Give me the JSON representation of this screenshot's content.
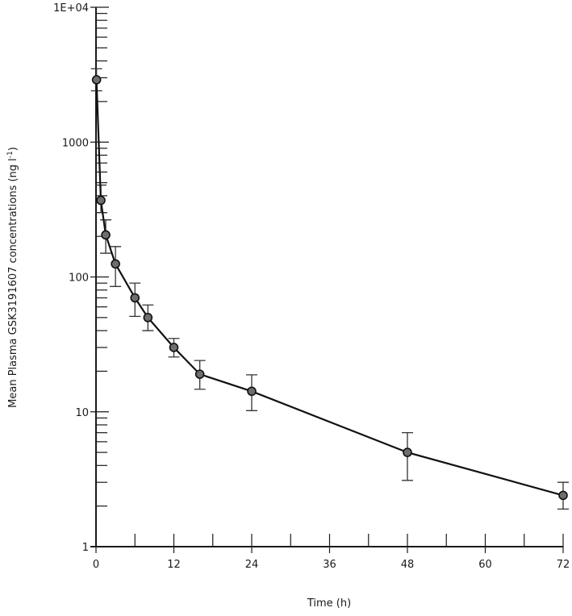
{
  "chart_data": {
    "type": "line",
    "title": "",
    "xlabel": "Time (h)",
    "ylabel": "Mean Plasma GSK3191607 concentrations (ng l",
    "ylabel_superscript": "-1",
    "ylabel_close": ")",
    "xlim": [
      0,
      72
    ],
    "ylim": [
      1,
      10000
    ],
    "yscale": "log",
    "grid": false,
    "x_ticks": [
      0,
      12,
      24,
      36,
      48,
      60,
      72
    ],
    "x_tick_labels": [
      "0",
      "12",
      "24",
      "36",
      "48",
      "60",
      "72"
    ],
    "y_ticks": [
      1,
      10,
      100,
      1000,
      10000
    ],
    "y_tick_labels": [
      "1",
      "10",
      "100",
      "1000",
      "1E+04"
    ],
    "series": [
      {
        "x": [
          0.08,
          0.75,
          1.5,
          3,
          6,
          8,
          12,
          16,
          24,
          48,
          72
        ],
        "y": [
          2900,
          370,
          205,
          125,
          70,
          50,
          30,
          19,
          14.2,
          5.0,
          2.4
        ],
        "err_low": [
          2400,
          300,
          150,
          85,
          51,
          40,
          25.5,
          14.7,
          10.2,
          3.1,
          1.9
        ],
        "err_high": [
          3500,
          480,
          265,
          168,
          90,
          62,
          35,
          24,
          18.8,
          7.0,
          3.0
        ]
      }
    ]
  }
}
